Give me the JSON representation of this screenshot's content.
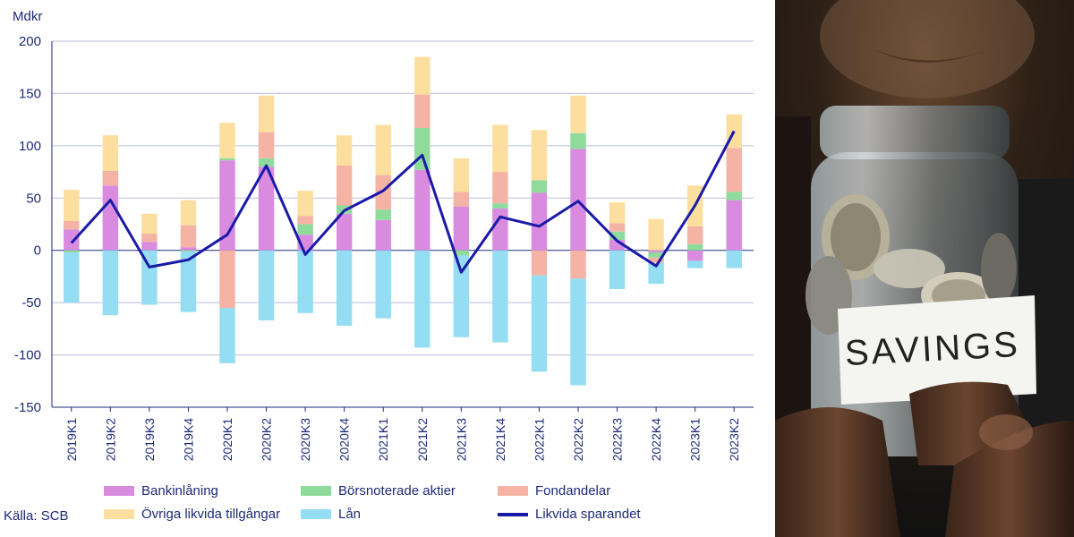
{
  "chart_data": {
    "type": "bar",
    "unit_label": "Mdkr",
    "source": "Källa: SCB",
    "categories": [
      "2019K1",
      "2019K2",
      "2019K3",
      "2019K4",
      "2020K1",
      "2020K2",
      "2020K3",
      "2020K4",
      "2021K1",
      "2021K2",
      "2021K3",
      "2021K4",
      "2022K1",
      "2022K2",
      "2022K3",
      "2022K4",
      "2023K1",
      "2023K2"
    ],
    "ylim": [
      -150,
      200
    ],
    "yticks": [
      -150,
      -100,
      -50,
      0,
      50,
      100,
      150,
      200
    ],
    "grid": true,
    "stacked": true,
    "series": [
      {
        "name": "Bankinlåning",
        "color": "#d98be0",
        "values": [
          20,
          62,
          8,
          3,
          86,
          80,
          15,
          35,
          29,
          77,
          42,
          40,
          55,
          97,
          10,
          -2,
          -10,
          48
        ]
      },
      {
        "name": "Börsnoterade aktier",
        "color": "#8edb9b",
        "values": [
          -2,
          0,
          0,
          -1,
          2,
          8,
          10,
          8,
          10,
          40,
          -5,
          5,
          12,
          15,
          8,
          -5,
          6,
          8
        ]
      },
      {
        "name": "Fondandelar",
        "color": "#f5b3a5",
        "values": [
          8,
          14,
          8,
          21,
          -55,
          25,
          8,
          38,
          33,
          32,
          14,
          30,
          -24,
          -27,
          8,
          -5,
          17,
          42
        ]
      },
      {
        "name": "Övriga likvida tillgångar",
        "color": "#fcdf9e",
        "values": [
          30,
          34,
          19,
          24,
          34,
          35,
          24,
          29,
          48,
          36,
          32,
          45,
          48,
          36,
          20,
          30,
          39,
          32
        ]
      },
      {
        "name": "Lån",
        "color": "#94ddf2",
        "values": [
          -48,
          -62,
          -52,
          -58,
          -53,
          -67,
          -60,
          -72,
          -65,
          -93,
          -78,
          -88,
          -92,
          -102,
          -37,
          -20,
          -7,
          -17
        ]
      }
    ],
    "line": {
      "name": "Likvida sparandet",
      "color": "#1a1aa8",
      "values": [
        7,
        48,
        -16,
        -9,
        15,
        81,
        -4,
        38,
        57,
        91,
        -21,
        32,
        23,
        47,
        9,
        -15,
        43,
        114
      ]
    }
  },
  "photo": {
    "label_text": "SAVINGS",
    "description_icon": "coin-jar-photo"
  }
}
